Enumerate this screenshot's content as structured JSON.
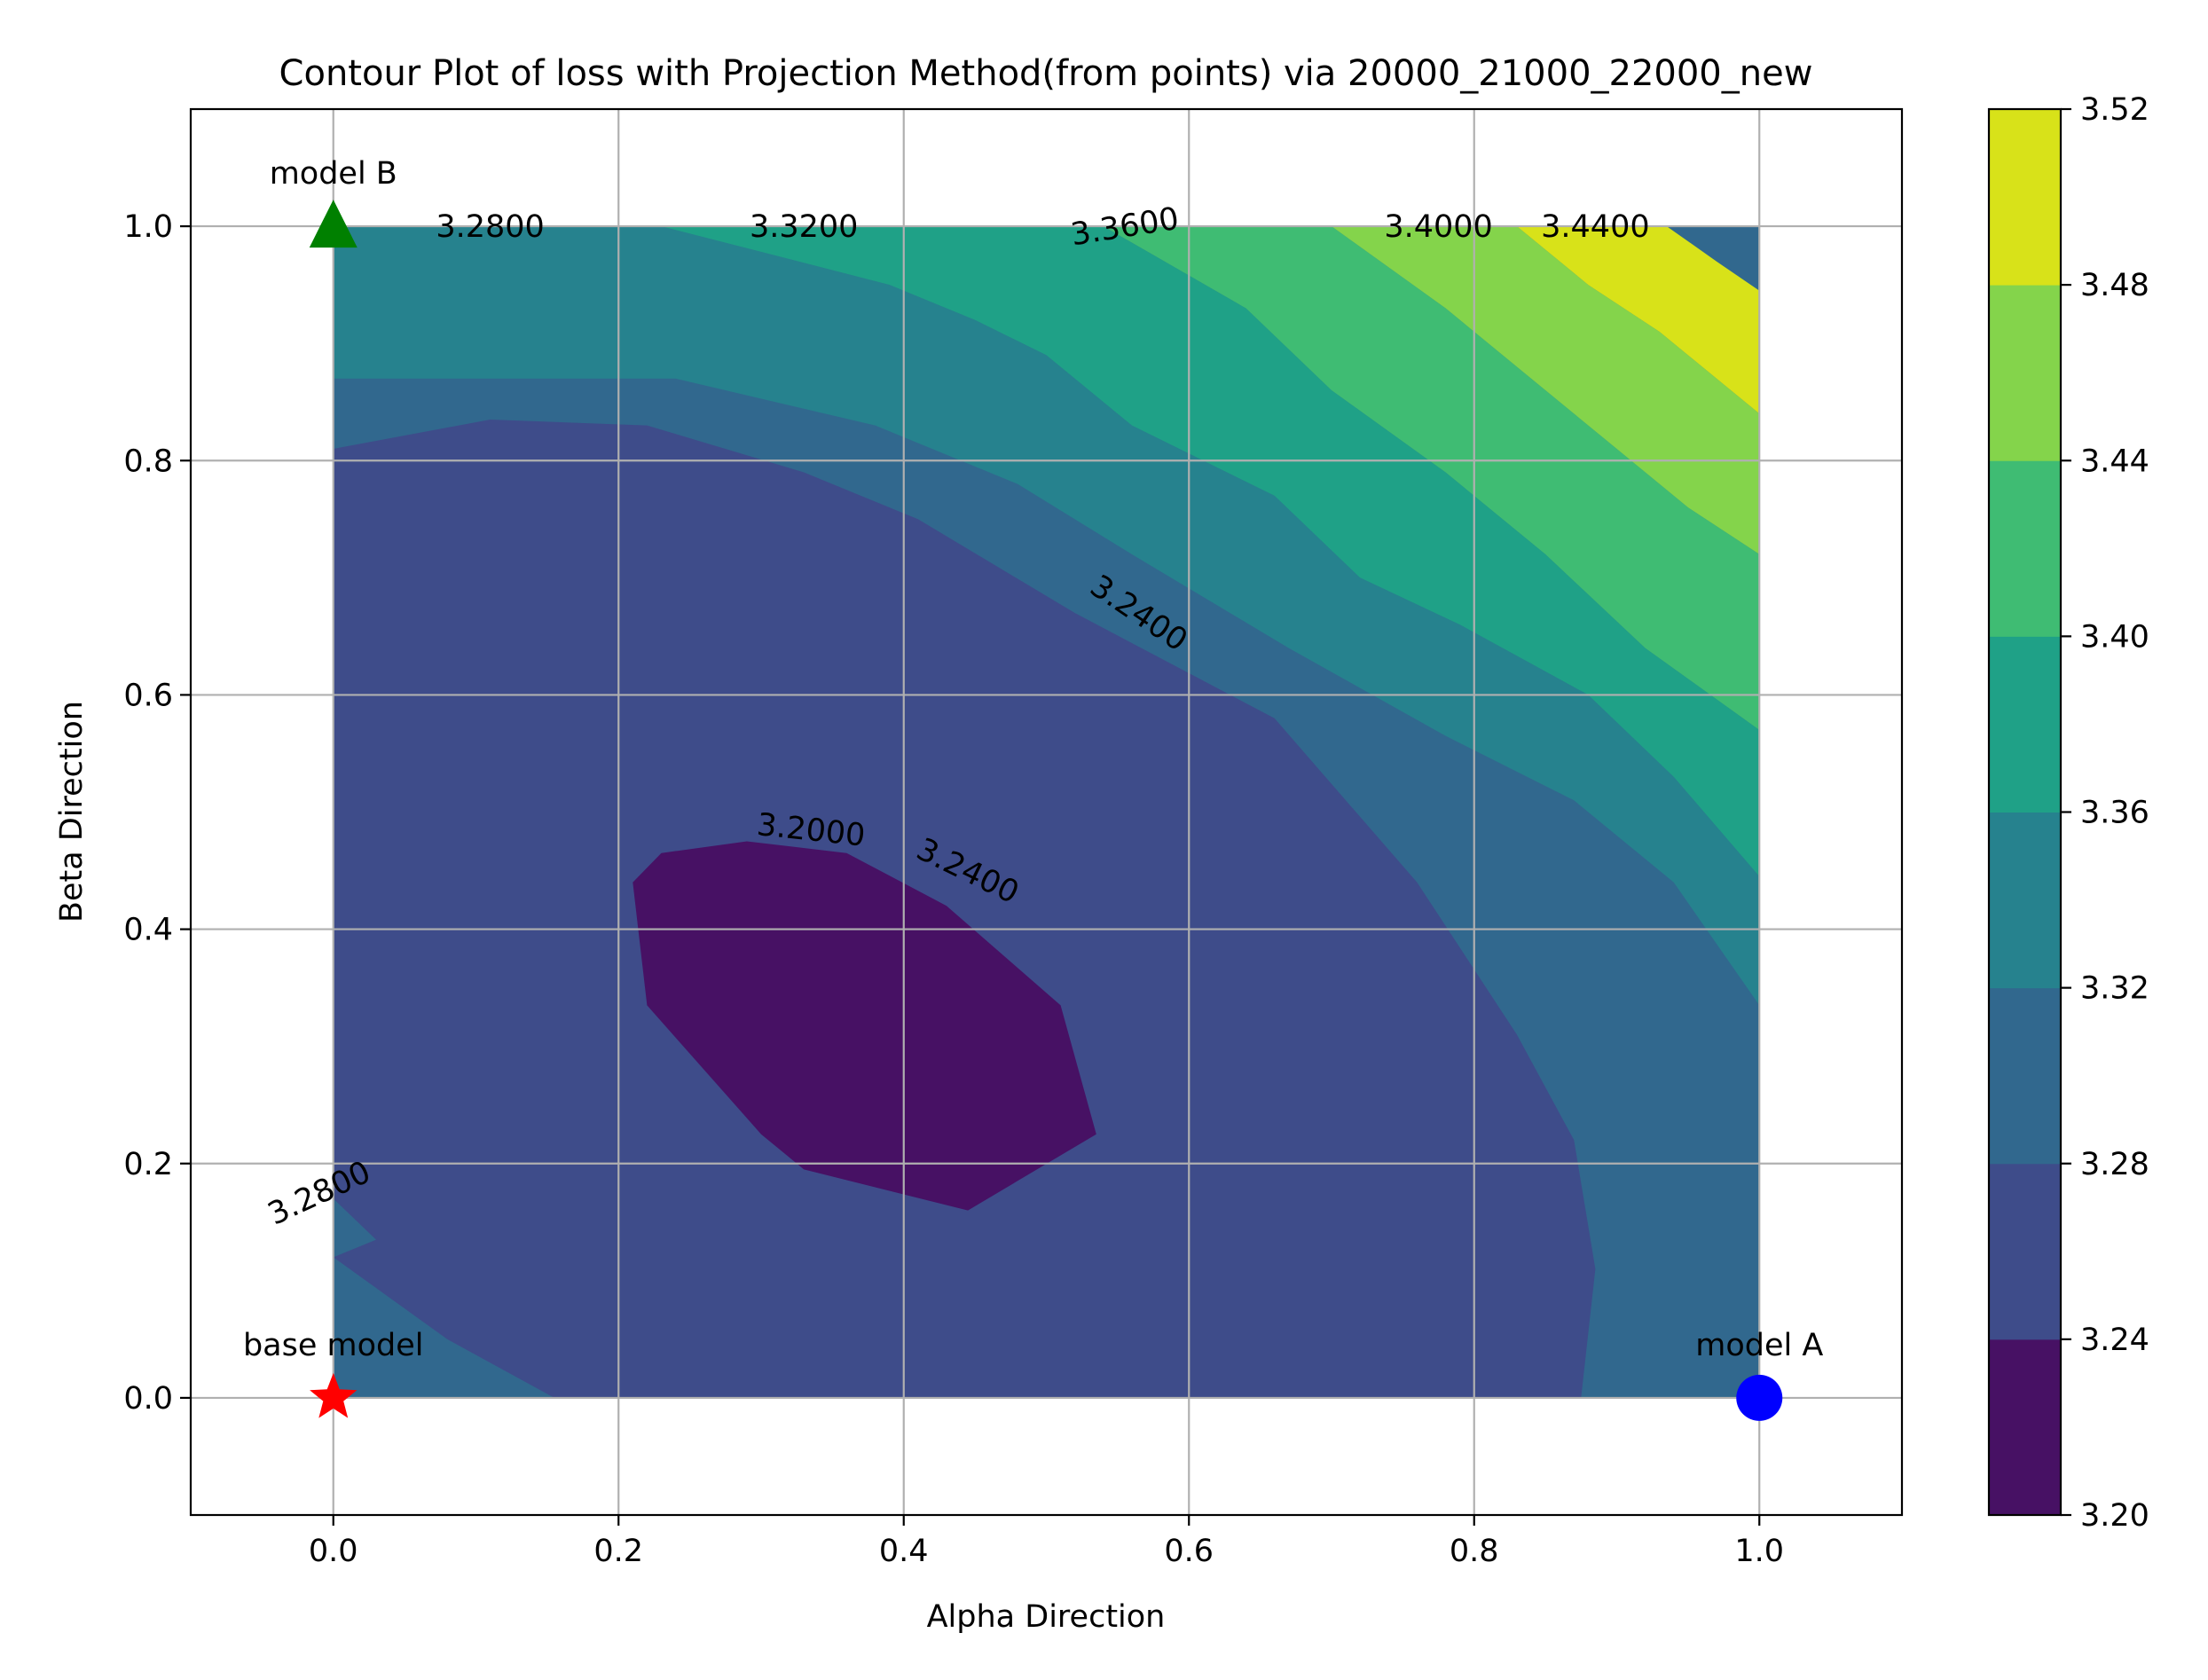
{
  "chart_data": {
    "type": "contour",
    "title": "Contour Plot of loss with Projection Method(from points) via 20000_21000_22000_new",
    "xlabel": "Alpha Direction",
    "ylabel": "Beta Direction",
    "xlim": [
      -0.1,
      1.1
    ],
    "ylim": [
      -0.1,
      1.1
    ],
    "xticks": [
      "0.0",
      "0.2",
      "0.4",
      "0.6",
      "0.8",
      "1.0"
    ],
    "yticks": [
      "0.0",
      "0.2",
      "0.4",
      "0.6",
      "0.8",
      "1.0"
    ],
    "grid": true,
    "levels": [
      3.2,
      3.24,
      3.28,
      3.32,
      3.36,
      3.4,
      3.44,
      3.48,
      3.52
    ],
    "colorbar_ticks": [
      "3.20",
      "3.24",
      "3.28",
      "3.32",
      "3.36",
      "3.40",
      "3.44",
      "3.48",
      "3.52"
    ],
    "colormap": [
      "#471164",
      "#3e4c8a",
      "#31688e",
      "#26828e",
      "#1fa187",
      "#3fbc73",
      "#84d44b",
      "#d8e219"
    ],
    "contour_labels": [
      {
        "text": "3.2800",
        "x": 0.11,
        "y": 1.0,
        "rotation": 0
      },
      {
        "text": "3.3200",
        "x": 0.33,
        "y": 1.0,
        "rotation": 0
      },
      {
        "text": "3.3600",
        "x": 0.555,
        "y": 1.0,
        "rotation": -9
      },
      {
        "text": "3.4000",
        "x": 0.775,
        "y": 1.0,
        "rotation": 0
      },
      {
        "text": "3.4400",
        "x": 0.885,
        "y": 1.0,
        "rotation": 0
      },
      {
        "text": "3.2400",
        "x": 0.565,
        "y": 0.67,
        "rotation": 34
      },
      {
        "text": "3.2000",
        "x": 0.335,
        "y": 0.485,
        "rotation": 6
      },
      {
        "text": "3.2400",
        "x": 0.445,
        "y": 0.45,
        "rotation": 26
      },
      {
        "text": "3.2800",
        "x": -0.01,
        "y": 0.175,
        "rotation": -25
      }
    ],
    "markers": [
      {
        "label": "base model",
        "x": 0.0,
        "y": 0.0,
        "shape": "star",
        "color": "#ff0000"
      },
      {
        "label": "model A",
        "x": 1.0,
        "y": 0.0,
        "shape": "circle",
        "color": "#0000ff"
      },
      {
        "label": "model B",
        "x": 0.0,
        "y": 1.0,
        "shape": "triangle",
        "color": "#008000"
      }
    ],
    "level_regions": {
      "3.24-3.28": [
        [
          0,
          0.12
        ],
        [
          0.03,
          0.135
        ],
        [
          0,
          0.17
        ],
        [
          0,
          0.81
        ],
        [
          0.11,
          0.835
        ],
        [
          0.22,
          0.83
        ],
        [
          0.33,
          0.79
        ],
        [
          0.41,
          0.75
        ],
        [
          0.52,
          0.67
        ],
        [
          0.66,
          0.58
        ],
        [
          0.76,
          0.44
        ],
        [
          0.83,
          0.31
        ],
        [
          0.87,
          0.22
        ],
        [
          0.885,
          0.11
        ],
        [
          0.875,
          0.0
        ],
        [
          0.155,
          0.0
        ],
        [
          0.08,
          0.05
        ]
      ],
      "3.20-3.24": [
        [
          0.21,
          0.44
        ],
        [
          0.23,
          0.465
        ],
        [
          0.29,
          0.475
        ],
        [
          0.36,
          0.465
        ],
        [
          0.43,
          0.42
        ],
        [
          0.51,
          0.335
        ],
        [
          0.535,
          0.225
        ],
        [
          0.445,
          0.16
        ],
        [
          0.33,
          0.195
        ],
        [
          0.3,
          0.225
        ],
        [
          0.22,
          0.335
        ]
      ],
      "3.32-3.36": [
        [
          0.23,
          1.0
        ],
        [
          0.39,
          0.95
        ],
        [
          0.45,
          0.92
        ],
        [
          0.5,
          0.89
        ],
        [
          0.56,
          0.83
        ],
        [
          0.66,
          0.77
        ],
        [
          0.72,
          0.7
        ],
        [
          0.79,
          0.66
        ],
        [
          0.88,
          0.6
        ],
        [
          0.94,
          0.53
        ],
        [
          1.0,
          0.445
        ],
        [
          1.0,
          0.335
        ],
        [
          0.94,
          0.44
        ],
        [
          0.87,
          0.51
        ],
        [
          0.78,
          0.565
        ],
        [
          0.67,
          0.64
        ],
        [
          0.56,
          0.72
        ],
        [
          0.48,
          0.78
        ],
        [
          0.38,
          0.83
        ],
        [
          0.24,
          0.87
        ],
        [
          0.0,
          0.87
        ],
        [
          0.0,
          1.0
        ]
      ],
      "3.36-3.40": [
        [
          0.54,
          1.0
        ],
        [
          0.64,
          0.93
        ],
        [
          0.7,
          0.86
        ],
        [
          0.78,
          0.79
        ],
        [
          0.85,
          0.72
        ],
        [
          0.92,
          0.64
        ],
        [
          1.0,
          0.57
        ],
        [
          1.0,
          0.445
        ],
        [
          0.94,
          0.53
        ],
        [
          0.88,
          0.6
        ],
        [
          0.79,
          0.66
        ],
        [
          0.72,
          0.7
        ],
        [
          0.66,
          0.77
        ],
        [
          0.56,
          0.83
        ],
        [
          0.5,
          0.89
        ],
        [
          0.45,
          0.92
        ],
        [
          0.39,
          0.95
        ],
        [
          0.23,
          1.0
        ]
      ],
      "3.40-3.44": [
        [
          0.7,
          1.0
        ],
        [
          0.78,
          0.93
        ],
        [
          0.84,
          0.87
        ],
        [
          0.9,
          0.81
        ],
        [
          0.95,
          0.76
        ],
        [
          1.0,
          0.72
        ],
        [
          1.0,
          0.57
        ],
        [
          0.92,
          0.64
        ],
        [
          0.85,
          0.72
        ],
        [
          0.78,
          0.79
        ],
        [
          0.7,
          0.86
        ],
        [
          0.64,
          0.93
        ],
        [
          0.54,
          1.0
        ]
      ],
      "3.44-3.48": [
        [
          0.83,
          1.0
        ],
        [
          0.88,
          0.95
        ],
        [
          0.93,
          0.91
        ],
        [
          0.97,
          0.87
        ],
        [
          1.0,
          0.84
        ],
        [
          1.0,
          0.72
        ],
        [
          0.95,
          0.76
        ],
        [
          0.9,
          0.81
        ],
        [
          0.84,
          0.87
        ],
        [
          0.78,
          0.93
        ],
        [
          0.7,
          1.0
        ]
      ],
      "3.48-3.52": [
        [
          0.935,
          1.0
        ],
        [
          0.97,
          0.97
        ],
        [
          1.0,
          0.945
        ],
        [
          1.0,
          0.84
        ],
        [
          0.97,
          0.87
        ],
        [
          0.93,
          0.91
        ],
        [
          0.88,
          0.95
        ],
        [
          0.83,
          1.0
        ]
      ]
    }
  }
}
